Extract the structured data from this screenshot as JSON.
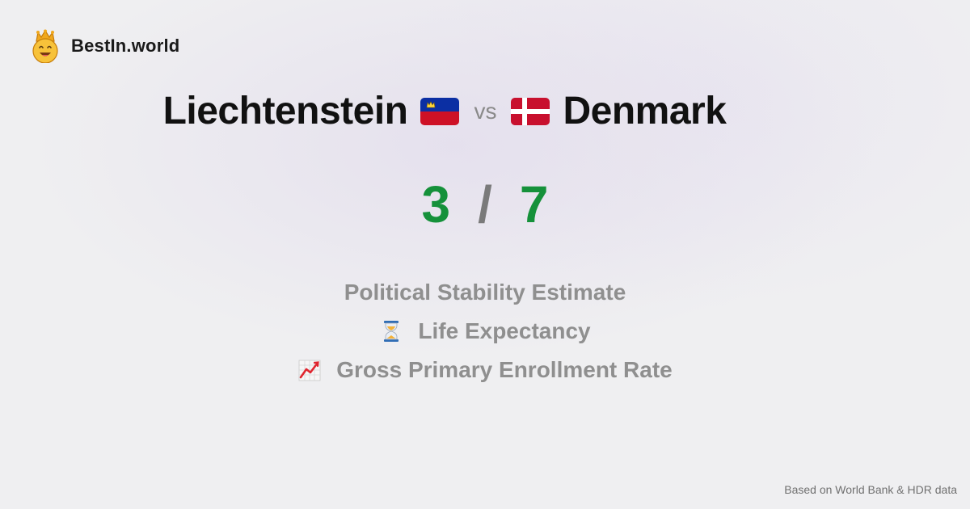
{
  "brand": {
    "name": "BestIn.world",
    "logo_icon": "crown-smiley-icon"
  },
  "comparison": {
    "country_a": {
      "name": "Liechtenstein",
      "flag": "liechtenstein-flag-icon"
    },
    "separator": "vs",
    "country_b": {
      "name": "Denmark",
      "flag": "denmark-flag-icon"
    }
  },
  "score": {
    "a": "3",
    "separator": "/",
    "b": "7",
    "color": "#15913a"
  },
  "metrics": [
    {
      "label": "Political Stability Estimate",
      "icon": ""
    },
    {
      "label": "Life Expectancy",
      "icon": "hourglass-icon"
    },
    {
      "label": "Gross Primary Enrollment Rate",
      "icon": "chart-increasing-icon"
    }
  ],
  "footer": {
    "source": "Based on World Bank & HDR data"
  }
}
